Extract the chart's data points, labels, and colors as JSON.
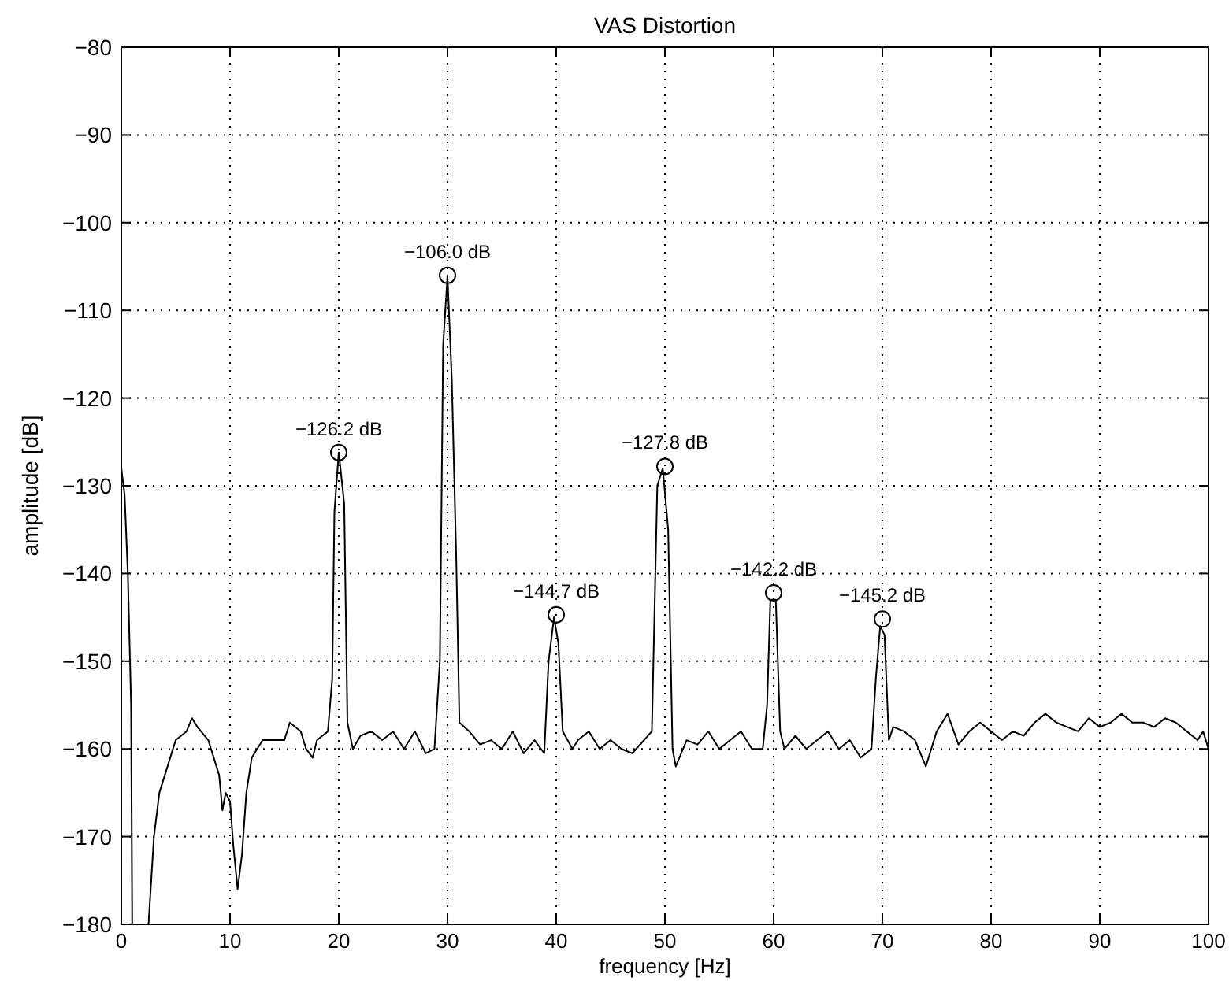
{
  "chart_data": {
    "type": "line",
    "title": "VAS Distortion",
    "xlabel": "frequency [Hz]",
    "ylabel": "amplitude [dB]",
    "xlim": [
      0,
      100
    ],
    "xticks": [
      0,
      10,
      20,
      30,
      40,
      50,
      60,
      70,
      80,
      90,
      100
    ],
    "ylim": [
      -180,
      -80
    ],
    "yticks": [
      -180,
      -170,
      -160,
      -150,
      -140,
      -130,
      -120,
      -110,
      -100,
      -90,
      -80
    ],
    "grid": true,
    "line_style": "solid",
    "series": [
      {
        "color": "#000000",
        "x": [
          0,
          0.3,
          0.6,
          0.9,
          1.0,
          2.5,
          3,
          3.5,
          4,
          5,
          6,
          6.5,
          7,
          8,
          9,
          9.3,
          9.6,
          10,
          10.3,
          10.7,
          11.1,
          11.5,
          12,
          13,
          14,
          15,
          15.5,
          16.5,
          17,
          17.6,
          18,
          19,
          19.4,
          19.6,
          20,
          20.5,
          20.8,
          21.3,
          22,
          23,
          24,
          25,
          26,
          27,
          28,
          28.8,
          29.3,
          29.6,
          30,
          30.4,
          30.8,
          31.1,
          32,
          33,
          34,
          35,
          36,
          37,
          38,
          38.9,
          39.3,
          39.8,
          40.2,
          40.6,
          41.5,
          42,
          43,
          44,
          45,
          46,
          47,
          48.8,
          49.3,
          49.8,
          50.3,
          50.7,
          51,
          52,
          53,
          54,
          55,
          56,
          57,
          58,
          59,
          59.4,
          59.7,
          60.2,
          60.6,
          61,
          62,
          63,
          64,
          65,
          66,
          67,
          68,
          69,
          69.4,
          69.8,
          70.2,
          70.6,
          71,
          72,
          73,
          74,
          75,
          76,
          77,
          78,
          79,
          80,
          81,
          82,
          83,
          84,
          85,
          86,
          87,
          88,
          89,
          90,
          91,
          92,
          93,
          94,
          95,
          96,
          97,
          98,
          99,
          99.5,
          100
        ],
        "values": [
          -128,
          -131,
          -140,
          -155,
          -180,
          -180,
          -170,
          -165,
          -163,
          -159,
          -158,
          -156.5,
          -157.5,
          -159,
          -163,
          -167,
          -165,
          -166,
          -171,
          -176,
          -172,
          -165,
          -161,
          -159,
          -159,
          -159,
          -157,
          -158,
          -160,
          -161,
          -159,
          -158,
          -152,
          -133,
          -126.2,
          -132,
          -157,
          -160,
          -158.5,
          -158,
          -159,
          -158,
          -160,
          -158,
          -160.5,
          -160,
          -150,
          -114,
          -106,
          -118,
          -138,
          -157,
          -158,
          -159.5,
          -159,
          -160,
          -158,
          -160.5,
          -159,
          -160.5,
          -150,
          -145,
          -148,
          -158,
          -160,
          -159,
          -158,
          -160,
          -159,
          -160,
          -160.5,
          -158,
          -130,
          -128,
          -135,
          -160,
          -162,
          -159,
          -159.5,
          -158,
          -160,
          -159,
          -158,
          -160,
          -160,
          -155,
          -143,
          -143,
          -158,
          -160,
          -158.5,
          -160,
          -159,
          -158,
          -160,
          -159,
          -161,
          -160,
          -152,
          -146,
          -147,
          -159,
          -157.5,
          -158,
          -159,
          -162,
          -158,
          -156,
          -159.5,
          -158,
          -157,
          -158,
          -159,
          -158,
          -158.5,
          -157,
          -156,
          -157,
          -157.5,
          -158,
          -156.5,
          -157.5,
          -157,
          -156,
          -157,
          -157,
          -157.5,
          -156.5,
          -157,
          -158,
          -159,
          -158,
          -160
        ]
      },
      {
        "type": "scatter",
        "marker": "circle",
        "color": "#000000",
        "x": [
          20,
          30,
          40,
          50,
          60,
          70
        ],
        "values": [
          -126.2,
          -106.0,
          -144.7,
          -127.8,
          -142.2,
          -145.2
        ],
        "value_labels": [
          "−126.2 dB",
          "−106.0 dB",
          "−144.7 dB",
          "−127.8 dB",
          "−142.2 dB",
          "−145.2 dB"
        ]
      }
    ]
  }
}
